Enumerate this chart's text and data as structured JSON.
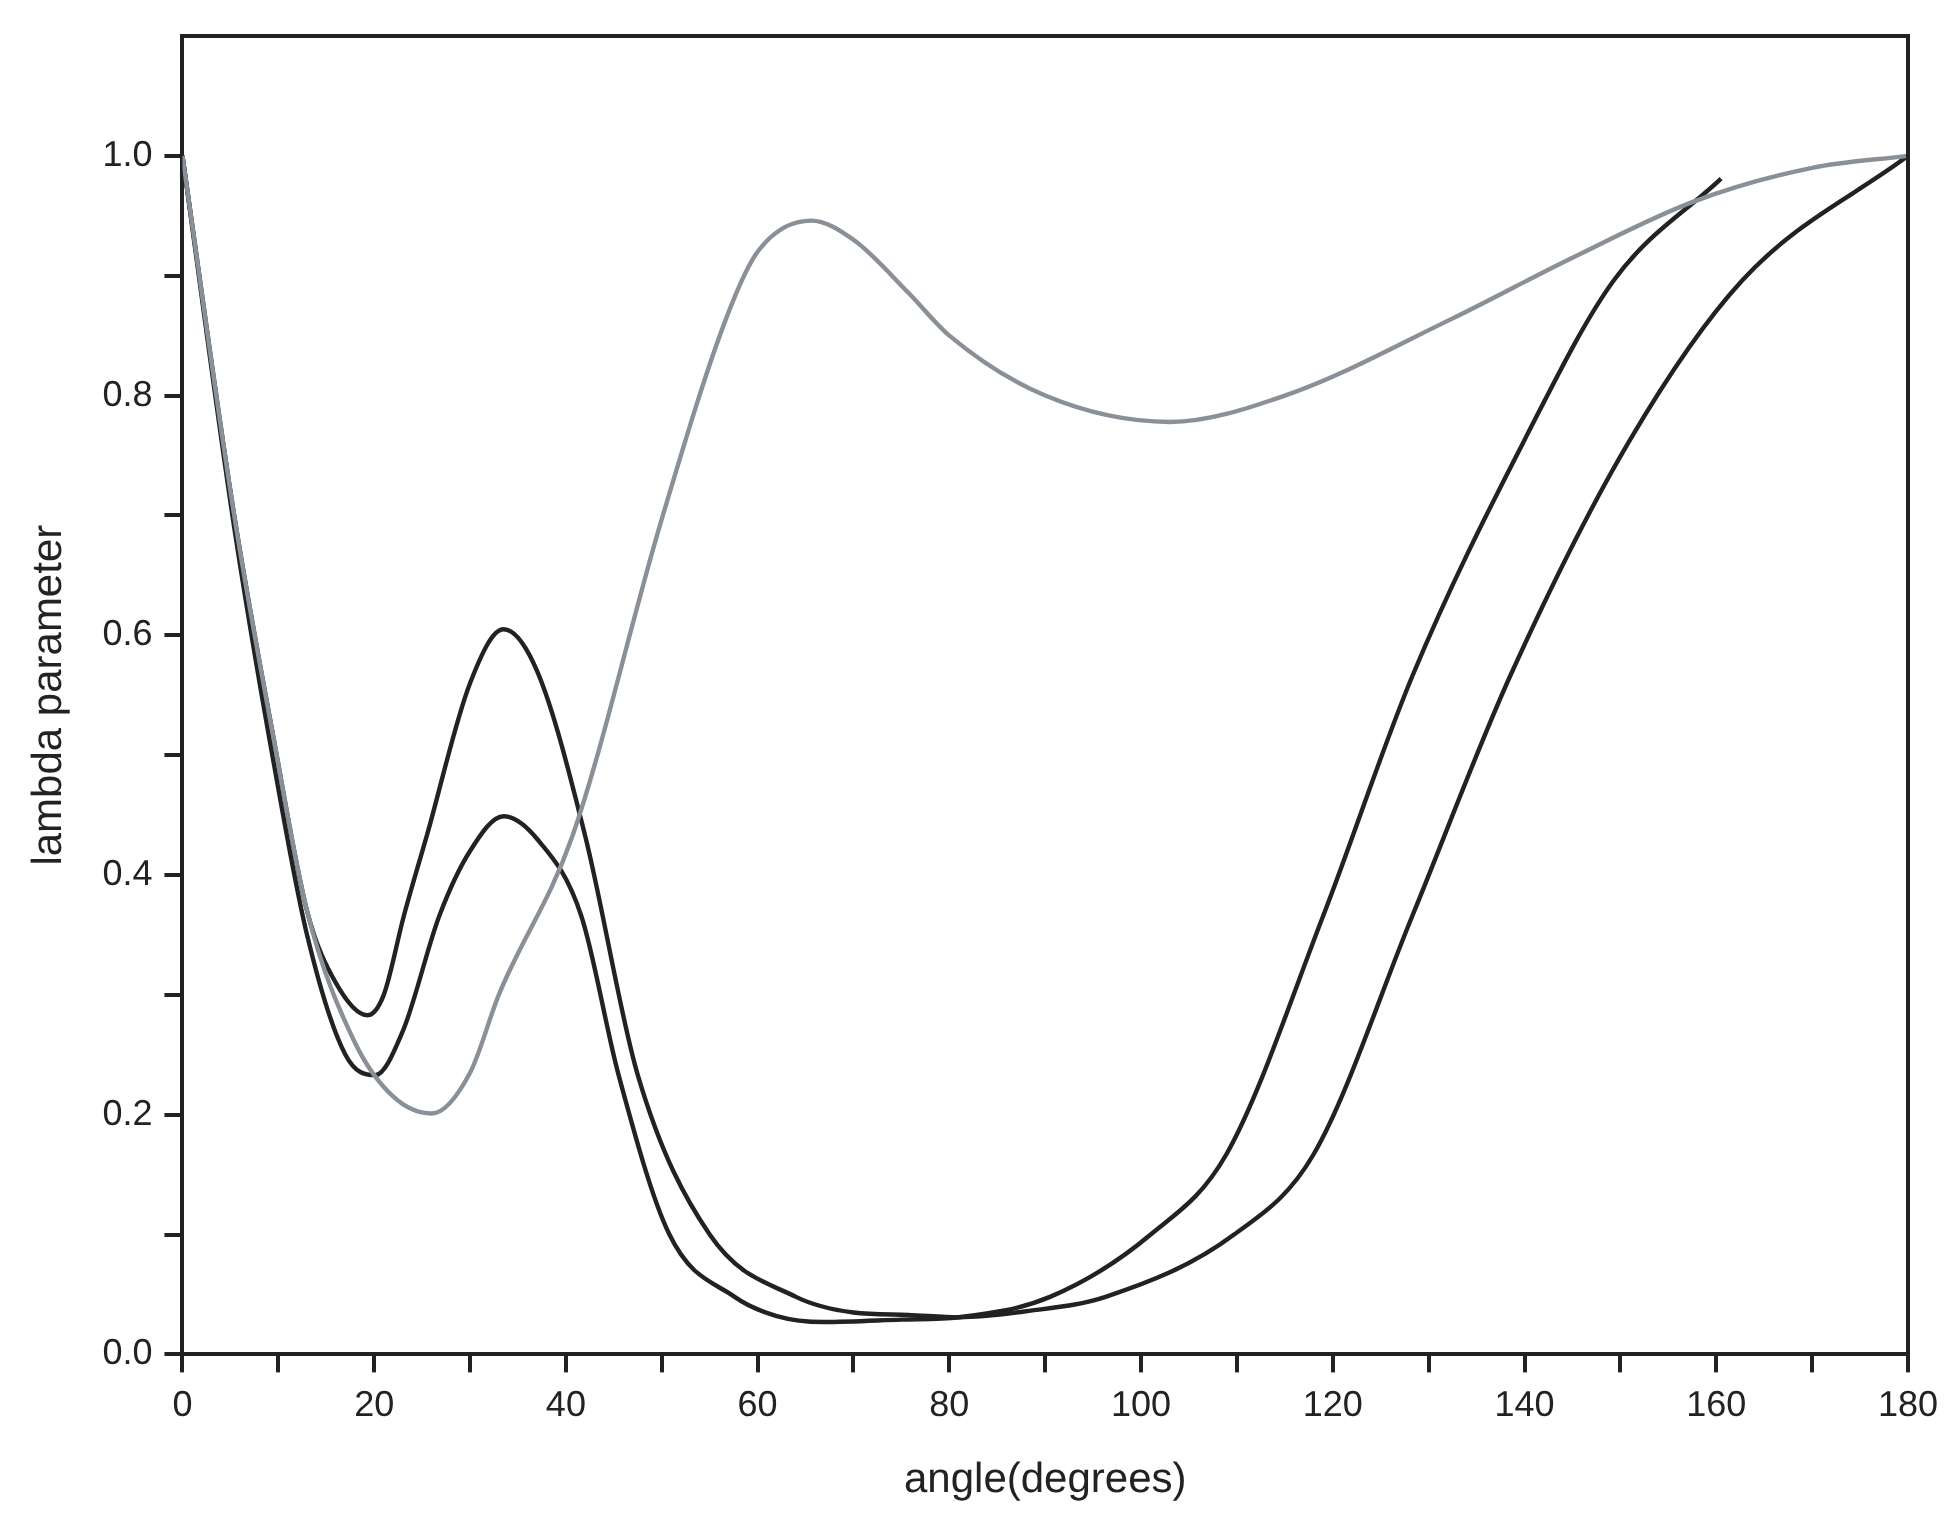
{
  "chart_data": {
    "type": "line",
    "xlabel": "angle(degrees)",
    "ylabel": "lambda parameter",
    "xlim": [
      0,
      180
    ],
    "ylim": [
      0,
      1.1
    ],
    "xticks": [
      0,
      {
        "value": 10,
        "label": null
      },
      20,
      {
        "value": 30,
        "label": null
      },
      40,
      {
        "value": 50,
        "label": null
      },
      60,
      {
        "value": 70,
        "label": null
      },
      80,
      {
        "value": 90,
        "label": null
      },
      100,
      {
        "value": 110,
        "label": null
      },
      120,
      {
        "value": 130,
        "label": null
      },
      140,
      {
        "value": 150,
        "label": null
      },
      160,
      {
        "value": 170,
        "label": null
      },
      180
    ],
    "yticks": [
      {
        "value": 0,
        "label": "0.0"
      },
      {
        "value": 0.1,
        "label": null
      },
      {
        "value": 0.2,
        "label": "0.2"
      },
      {
        "value": 0.3,
        "label": null
      },
      {
        "value": 0.4,
        "label": "0.4"
      },
      {
        "value": 0.5,
        "label": null
      },
      {
        "value": 0.6,
        "label": "0.6"
      },
      {
        "value": 0.7,
        "label": null
      },
      {
        "value": 0.8,
        "label": "0.8"
      },
      {
        "value": 0.9,
        "label": null
      },
      {
        "value": 1.0,
        "label": "1.0"
      }
    ],
    "tick_labels": "xy",
    "legend": false,
    "marker": "none",
    "line_style": "solid",
    "series": [
      {
        "color": "#8a9098",
        "x": [
          0,
          5.4,
          9.6,
          13,
          18,
          22,
          26,
          30,
          33,
          40.7,
          50,
          56.7,
          60,
          65.6,
          70,
          75.7,
          80,
          90,
          103,
          115,
          132.4,
          145,
          157.7,
          170,
          180
        ],
        "values": [
          1.0,
          0.7,
          0.51,
          0.37,
          0.26,
          0.215,
          0.201,
          0.235,
          0.3,
          0.433,
          0.697,
          0.864,
          0.92,
          0.946,
          0.93,
          0.886,
          0.85,
          0.8,
          0.778,
          0.8,
          0.864,
          0.915,
          0.962,
          0.99,
          1.0
        ]
      },
      {
        "color": "#222222",
        "x": [
          0,
          5.4,
          9.6,
          13,
          16,
          19.3,
          21,
          23.1,
          25.5,
          30,
          33.5,
          37,
          42,
          47.5,
          55,
          64,
          70,
          75.7,
          81,
          88,
          96.3,
          109.7,
          118,
          128.3,
          138.5,
          151,
          162.7,
          180
        ],
        "values": [
          1.0,
          0.7,
          0.51,
          0.37,
          0.31,
          0.283,
          0.3,
          0.366,
          0.433,
          0.56,
          0.605,
          0.57,
          0.433,
          0.233,
          0.1,
          0.048,
          0.035,
          0.033,
          0.031,
          0.036,
          0.048,
          0.1,
          0.167,
          0.366,
          0.566,
          0.763,
          0.896,
          1.0
        ]
      },
      {
        "color": "#222222",
        "x": [
          0,
          5.4,
          9.6,
          13,
          17,
          20.1,
          23,
          26.8,
          30,
          33.5,
          37,
          41.6,
          45.5,
          50.8,
          57.6,
          62,
          66.9,
          75,
          81,
          90.5,
          101,
          108.9,
          119,
          128.3,
          140,
          149.3,
          160.5
        ],
        "values": [
          1.0,
          0.69,
          0.49,
          0.35,
          0.25,
          0.233,
          0.27,
          0.366,
          0.42,
          0.449,
          0.43,
          0.366,
          0.233,
          0.1,
          0.048,
          0.032,
          0.027,
          0.029,
          0.031,
          0.048,
          0.1,
          0.167,
          0.366,
          0.566,
          0.763,
          0.896,
          0.981
        ]
      }
    ]
  }
}
